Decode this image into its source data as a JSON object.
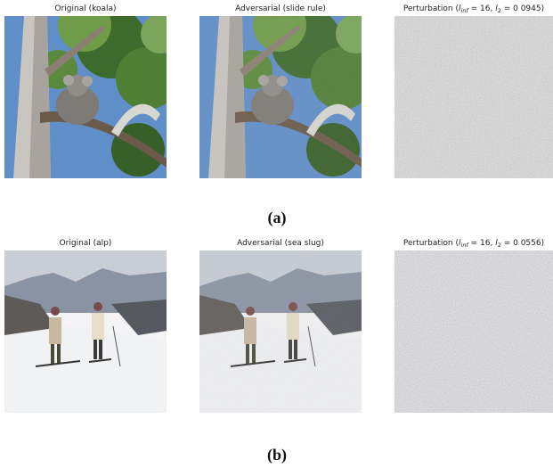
{
  "panels": [
    {
      "label": "(a)",
      "images": [
        {
          "title": "Original (koala)"
        },
        {
          "title": "Adversarial (slide rule)"
        },
        {
          "title_parts": [
            "Perturbation (",
            "l",
            "inf",
            " = 16, ",
            "l",
            "2",
            " = 0 0945)"
          ]
        }
      ]
    },
    {
      "label": "(b)",
      "images": [
        {
          "title": "Original (alp)"
        },
        {
          "title": "Adversarial (sea slug)"
        },
        {
          "title_parts": [
            "Perturbation (",
            "l",
            "inf",
            " = 16, ",
            "l",
            "2",
            " = 0 0556)"
          ]
        }
      ]
    }
  ]
}
